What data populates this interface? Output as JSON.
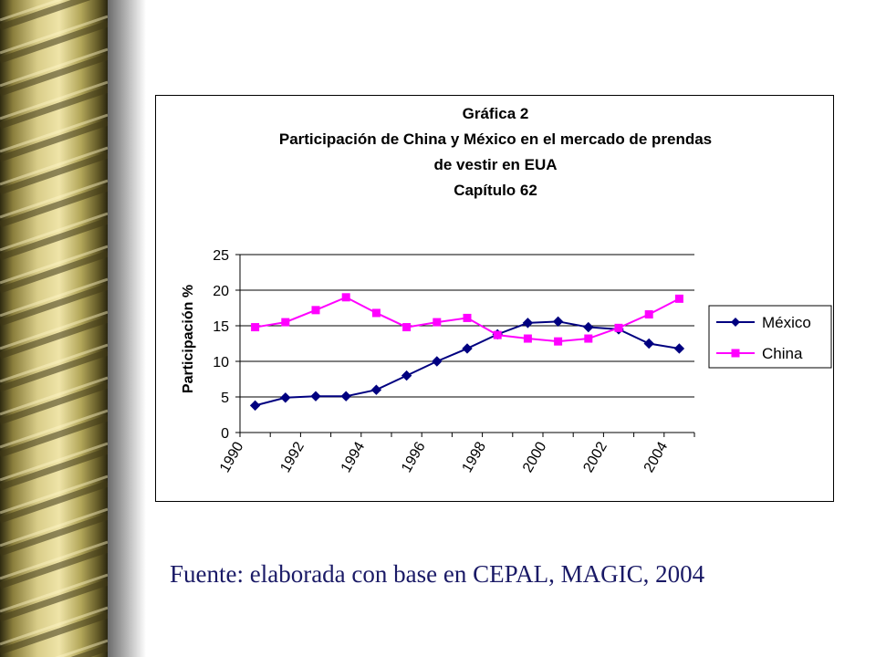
{
  "source_note": "Fuente: elaborada con base en CEPAL, MAGIC, 2004",
  "colors": {
    "mexico": "#000080",
    "china": "#ff00ff",
    "rod_dark": "#3a3414",
    "rod_light": "#d8cc88"
  },
  "chart_data": {
    "type": "line",
    "title": [
      "Gráfica 2",
      "Participación  de China y México en el mercado de prendas",
      "de vestir en EUA",
      "Capítulo 62"
    ],
    "xlabel": "",
    "ylabel": "Participación %",
    "ylim": [
      0,
      25
    ],
    "yticks": [
      0,
      5,
      10,
      15,
      20,
      25
    ],
    "grid": "horizontal",
    "legend_position": "right",
    "x": [
      1990,
      1991,
      1992,
      1993,
      1994,
      1995,
      1996,
      1997,
      1998,
      1999,
      2000,
      2001,
      2002,
      2003,
      2004
    ],
    "xtick_labels": [
      "1990",
      "1992",
      "1994",
      "1996",
      "1998",
      "2000",
      "2002",
      "2004"
    ],
    "series": [
      {
        "name": "México",
        "marker": "diamond",
        "color": "#000080",
        "values": [
          3.8,
          4.9,
          5.1,
          5.1,
          6.0,
          8.0,
          10.0,
          11.8,
          13.8,
          15.4,
          15.6,
          14.8,
          14.5,
          12.5,
          11.8
        ]
      },
      {
        "name": "China",
        "marker": "square",
        "color": "#ff00ff",
        "values": [
          14.8,
          15.5,
          17.2,
          19.0,
          16.8,
          14.8,
          15.5,
          16.1,
          13.7,
          13.2,
          12.8,
          13.2,
          14.7,
          16.6,
          18.8
        ]
      }
    ]
  }
}
